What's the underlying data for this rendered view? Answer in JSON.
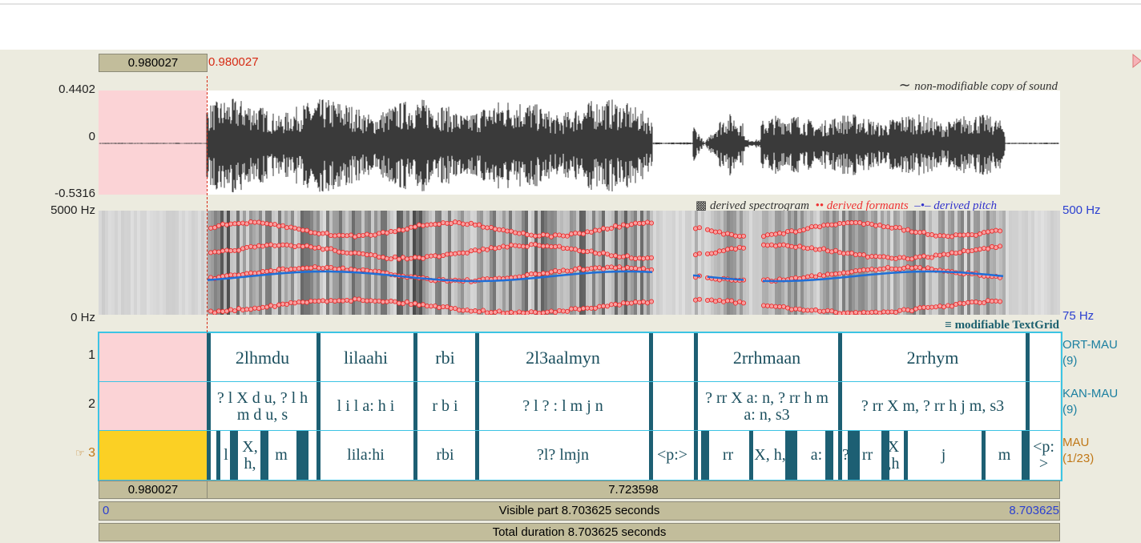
{
  "selection": {
    "start_box": "0.980027",
    "cursor_time": "0.980027"
  },
  "waveform": {
    "ymax": "0.4402",
    "yzero": "0",
    "ymin": "-0.5316",
    "note": "non-modifiable copy of sound"
  },
  "spectrogram": {
    "fmax": "5000 Hz",
    "fmin": "0 Hz",
    "pitch_max": "500 Hz",
    "pitch_min": "75 Hz",
    "legend": [
      "derived spectrogram",
      "derived formants",
      "derived pitch"
    ]
  },
  "textgrid": {
    "label": "modifiable TextGrid",
    "tiers": [
      {
        "number": "1",
        "name": "ORT-MAU",
        "count": "(9)",
        "intervals": [
          "2lhmdu",
          "lilaahi",
          "rbi",
          "2l3aalmyn",
          "2rrhmaan",
          "2rrhym"
        ]
      },
      {
        "number": "2",
        "name": "KAN-MAU",
        "count": "(9)",
        "intervals": [
          "? l X d u, ? l h m d u, s",
          "l i l a: h i",
          "r b i",
          "? l ? : l m j n",
          "? rr X a: n, ? rr h m a: n, s3",
          "? rr X m, ? rr h j m, s3"
        ]
      },
      {
        "marker": "☞",
        "number": "3",
        "name": "MAU",
        "count": "(1/23)",
        "intervals": [
          "l",
          "X, h,",
          "m",
          "lila:hi",
          "rbi",
          "?l? lmjn",
          "<p:>",
          "rr",
          "X, h,",
          "a:",
          "?",
          "rr",
          "X ,h",
          "j",
          "m",
          "<p: >"
        ]
      }
    ]
  },
  "footer": {
    "left_duration": "0.980027",
    "right_duration": "7.723598",
    "visible_start": "0",
    "visible_label": "Visible part 8.703625 seconds",
    "visible_end": "8.703625",
    "total_label": "Total duration 8.703625 seconds"
  }
}
